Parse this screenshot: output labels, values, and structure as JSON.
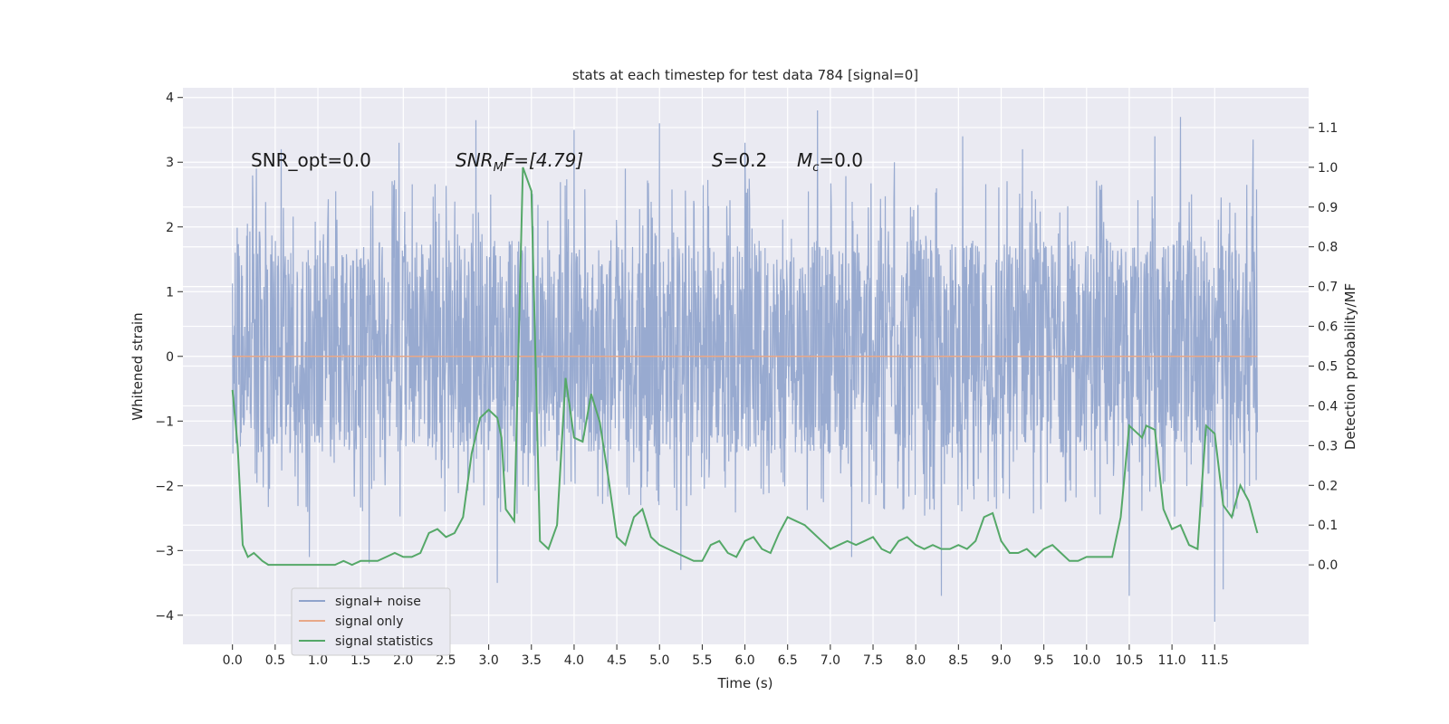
{
  "chart_data": {
    "type": "line",
    "title": "stats at each timestep for test data 784 [signal=0]",
    "xlabel": "Time (s)",
    "ylabel_left": "Whitened strain",
    "ylabel_right": "Detection probability/MF",
    "xlim": [
      -0.58,
      12.6
    ],
    "ylim_left": [
      -4.45,
      4.15
    ],
    "ylim_right": [
      -0.2,
      1.2
    ],
    "x_ticks": [
      "0.0",
      "0.5",
      "1.0",
      "1.5",
      "2.0",
      "2.5",
      "3.0",
      "3.5",
      "4.0",
      "4.5",
      "5.0",
      "5.5",
      "6.0",
      "6.5",
      "7.0",
      "7.5",
      "8.0",
      "8.5",
      "9.0",
      "9.5",
      "10.0",
      "10.5",
      "11.0",
      "11.5"
    ],
    "y_ticks_left": [
      "4",
      "3",
      "2",
      "1",
      "0",
      "−1",
      "−2",
      "−3",
      "−4"
    ],
    "y_ticks_right": [
      "1.1",
      "1.0",
      "0.9",
      "0.8",
      "0.7",
      "0.6",
      "0.5",
      "0.4",
      "0.3",
      "0.2",
      "0.1",
      "0.0"
    ],
    "grid": true,
    "legend_position": "lower-left",
    "annotations": {
      "snr_opt": "SNR_opt=0.0",
      "snr_mf_main": "SNR",
      "snr_mf_sub": "M",
      "snr_mf_rest": "F=[4.79]",
      "s_main": "S",
      "s_rest": "=0.2",
      "mc_main": "M",
      "mc_sub": "c",
      "mc_rest": "=0.0"
    },
    "series": [
      {
        "name": "signal+ noise",
        "axis": "left",
        "color": "#8fa3cc",
        "x_range": [
          0.0,
          12.0
        ],
        "typical_range": [
          -1.5,
          1.8
        ],
        "extremes": [
          {
            "x": 0.28,
            "y": 2.9
          },
          {
            "x": 0.57,
            "y": 3.2
          },
          {
            "x": 0.9,
            "y": -3.1
          },
          {
            "x": 1.6,
            "y": -3.2
          },
          {
            "x": 1.95,
            "y": 3.3
          },
          {
            "x": 2.85,
            "y": 3.65
          },
          {
            "x": 3.1,
            "y": -3.5
          },
          {
            "x": 4.0,
            "y": 3.5
          },
          {
            "x": 4.6,
            "y": 2.9
          },
          {
            "x": 5.0,
            "y": 3.6
          },
          {
            "x": 5.25,
            "y": -3.3
          },
          {
            "x": 6.0,
            "y": 3.3
          },
          {
            "x": 6.85,
            "y": 3.8
          },
          {
            "x": 7.25,
            "y": -3.1
          },
          {
            "x": 7.75,
            "y": 3.0
          },
          {
            "x": 8.3,
            "y": -3.7
          },
          {
            "x": 8.55,
            "y": 3.4
          },
          {
            "x": 9.25,
            "y": 3.2
          },
          {
            "x": 10.5,
            "y": -3.7
          },
          {
            "x": 10.8,
            "y": 3.4
          },
          {
            "x": 11.1,
            "y": 3.7
          },
          {
            "x": 11.5,
            "y": -4.1
          },
          {
            "x": 11.6,
            "y": -3.6
          },
          {
            "x": 11.95,
            "y": 3.35
          }
        ]
      },
      {
        "name": "signal only",
        "axis": "left",
        "color": "#e8a888",
        "x": [
          0.0,
          12.0
        ],
        "y": [
          0.0,
          0.0
        ]
      },
      {
        "name": "signal statistics",
        "axis": "right",
        "color": "#55a868",
        "x": [
          0.0,
          0.06,
          0.12,
          0.18,
          0.25,
          0.3,
          0.35,
          0.42,
          0.5,
          0.6,
          0.7,
          0.8,
          0.9,
          1.0,
          1.1,
          1.2,
          1.3,
          1.4,
          1.5,
          1.6,
          1.7,
          1.8,
          1.9,
          2.0,
          2.1,
          2.2,
          2.3,
          2.4,
          2.5,
          2.6,
          2.7,
          2.8,
          2.9,
          3.0,
          3.1,
          3.15,
          3.2,
          3.3,
          3.4,
          3.5,
          3.6,
          3.7,
          3.8,
          3.9,
          4.0,
          4.1,
          4.2,
          4.3,
          4.4,
          4.5,
          4.6,
          4.7,
          4.8,
          4.9,
          5.0,
          5.1,
          5.2,
          5.3,
          5.4,
          5.5,
          5.6,
          5.7,
          5.8,
          5.9,
          6.0,
          6.1,
          6.2,
          6.3,
          6.4,
          6.5,
          6.6,
          6.7,
          6.8,
          6.9,
          7.0,
          7.1,
          7.2,
          7.3,
          7.4,
          7.5,
          7.6,
          7.7,
          7.8,
          7.9,
          8.0,
          8.1,
          8.2,
          8.3,
          8.4,
          8.5,
          8.6,
          8.7,
          8.8,
          8.9,
          9.0,
          9.1,
          9.2,
          9.3,
          9.4,
          9.5,
          9.6,
          9.7,
          9.8,
          9.9,
          10.0,
          10.1,
          10.2,
          10.3,
          10.4,
          10.5,
          10.6,
          10.65,
          10.7,
          10.8,
          10.9,
          11.0,
          11.1,
          11.2,
          11.3,
          11.35,
          11.4,
          11.5,
          11.6,
          11.7,
          11.8,
          11.9,
          12.0
        ],
        "y": [
          0.44,
          0.3,
          0.05,
          0.02,
          0.03,
          0.02,
          0.01,
          0.0,
          0.0,
          0.0,
          0.0,
          0.0,
          0.0,
          0.0,
          0.0,
          0.0,
          0.01,
          0.0,
          0.01,
          0.01,
          0.01,
          0.02,
          0.03,
          0.02,
          0.02,
          0.03,
          0.08,
          0.09,
          0.07,
          0.08,
          0.12,
          0.28,
          0.37,
          0.39,
          0.37,
          0.32,
          0.14,
          0.11,
          1.0,
          0.94,
          0.06,
          0.04,
          0.1,
          0.47,
          0.32,
          0.31,
          0.43,
          0.36,
          0.22,
          0.07,
          0.05,
          0.12,
          0.14,
          0.07,
          0.05,
          0.04,
          0.03,
          0.02,
          0.01,
          0.01,
          0.05,
          0.06,
          0.03,
          0.02,
          0.06,
          0.07,
          0.04,
          0.03,
          0.08,
          0.12,
          0.11,
          0.1,
          0.08,
          0.06,
          0.04,
          0.05,
          0.06,
          0.05,
          0.06,
          0.07,
          0.04,
          0.03,
          0.06,
          0.07,
          0.05,
          0.04,
          0.05,
          0.04,
          0.04,
          0.05,
          0.04,
          0.06,
          0.12,
          0.13,
          0.06,
          0.03,
          0.03,
          0.04,
          0.02,
          0.04,
          0.05,
          0.03,
          0.01,
          0.01,
          0.02,
          0.02,
          0.02,
          0.02,
          0.12,
          0.35,
          0.33,
          0.32,
          0.35,
          0.34,
          0.14,
          0.09,
          0.1,
          0.05,
          0.04,
          0.2,
          0.35,
          0.33,
          0.15,
          0.12,
          0.2,
          0.16,
          0.08
        ]
      }
    ]
  }
}
